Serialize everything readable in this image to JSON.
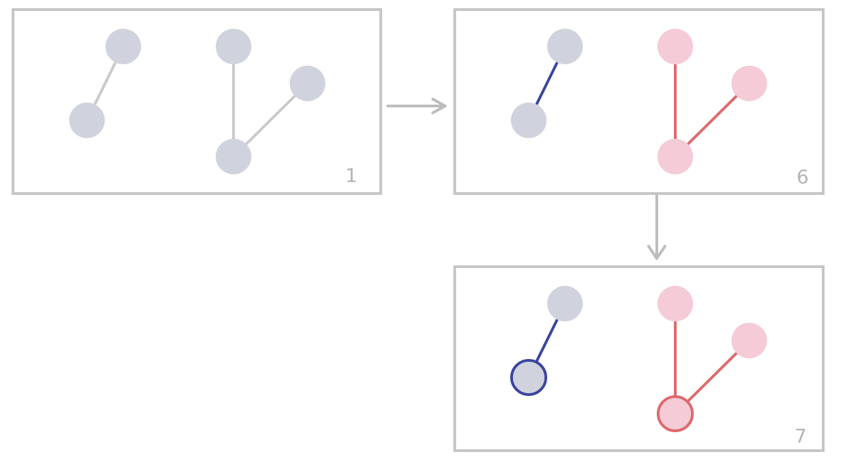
{
  "colors": {
    "frame": "#c6c6c6",
    "arrow": "#bdbdbd",
    "label": "#b4b4b4",
    "inactive_node": "#d0d3dd",
    "inactive_edge": "#cacaca",
    "blue_component_node": "#d0d3dd",
    "blue_component_edge": "#3b46a0",
    "red_component_node": "#f4cbd6",
    "red_component_edge": "#dd6a6d"
  },
  "panels": [
    {
      "id": "panel-1",
      "label": "1"
    },
    {
      "id": "panel-6",
      "label": "6"
    },
    {
      "id": "panel-7",
      "label": "7"
    }
  ],
  "graph": {
    "nodes": [
      "a",
      "b",
      "c",
      "d",
      "e"
    ],
    "edges": [
      [
        "a",
        "b"
      ],
      [
        "c",
        "d"
      ],
      [
        "e",
        "d"
      ]
    ]
  },
  "states": {
    "panel-1": {
      "components": {
        "left": "inactive",
        "right": "inactive"
      },
      "highlighted_nodes": []
    },
    "panel-6": {
      "components": {
        "left": "blue",
        "right": "red"
      },
      "highlighted_nodes": []
    },
    "panel-7": {
      "components": {
        "left": "blue",
        "right": "red"
      },
      "highlighted_nodes": [
        "b",
        "d"
      ]
    }
  },
  "arrows": [
    {
      "from": "panel-1",
      "to": "panel-6",
      "direction": "right"
    },
    {
      "from": "panel-6",
      "to": "panel-7",
      "direction": "down"
    }
  ]
}
